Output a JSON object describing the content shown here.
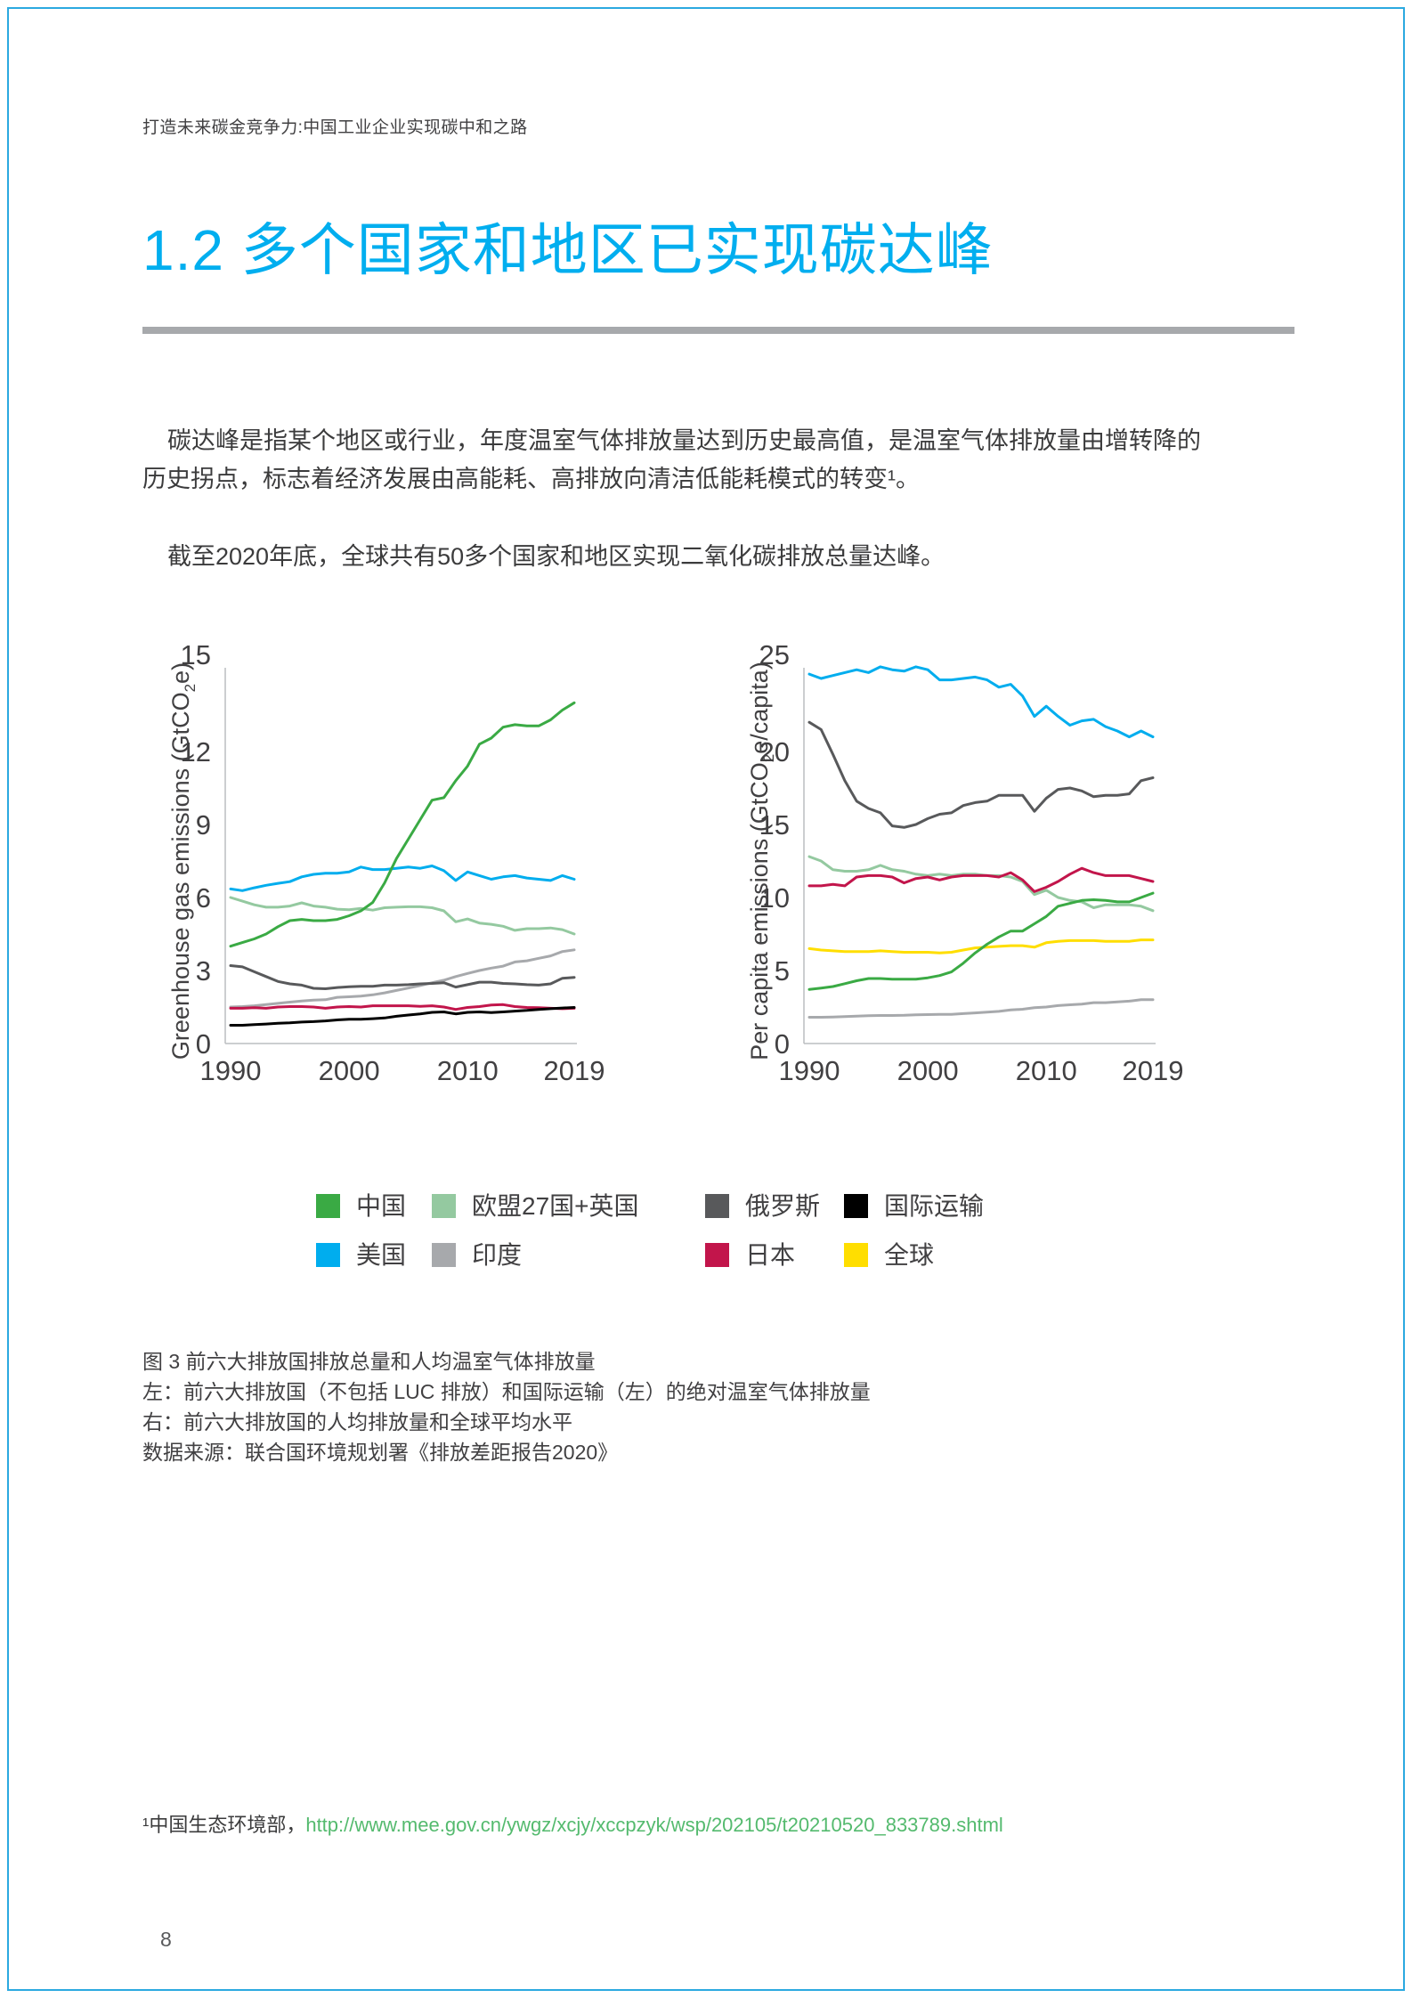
{
  "page": {
    "header": "打造未来碳金竞争力:中国工业企业实现碳中和之路",
    "section_title": "1.2 多个国家和地区已实现碳达峰",
    "paragraph1_lines": [
      "碳达峰是指某个地区或行业，年度温室气体排放量达到历史最高值，是温室气体排放量由增转降的",
      "历史拐点，标志着经济发展由高能耗、高排放向清洁低能耗模式的转变¹。"
    ],
    "paragraph2": "截至2020年底，全球共有50多个国家和地区实现二氧化碳排放总量达峰。",
    "caption_lines": [
      "图 3 前六大排放国排放总量和人均温室气体排放量",
      "左：前六大排放国（不包括 LUC 排放）和国际运输（左）的绝对温室气体排放量",
      "右：前六大排放国的人均排放量和全球平均水平",
      "数据来源：联合国环境规划署《排放差距报告2020》"
    ],
    "footnote": {
      "text": "¹中国生态环境部，",
      "link": "http://www.mee.gov.cn/ywgz/xcjy/xccpzyk/wsp/202105/t20210520_833789.shtml"
    },
    "page_number": "8"
  },
  "colors": {
    "accent_title": "#00AEEF",
    "page_border": "#2BA9E0",
    "divider": "#A7A9AC",
    "body_text": "#3B3B3C",
    "axis_text": "#414042",
    "axis_line": "#BCBEC0",
    "link_green": "#54BA6E",
    "series": {
      "china": "#3AAA44",
      "eu": "#94C9A0",
      "russia": "#58595B",
      "intl": "#000000",
      "us": "#00ADEE",
      "india": "#A7A9AC",
      "japan": "#C2154B",
      "global": "#FFDE00"
    }
  },
  "legend": {
    "items": [
      {
        "label": "中国",
        "key": "china"
      },
      {
        "label": "欧盟27国+英国",
        "key": "eu"
      },
      {
        "label": "俄罗斯",
        "key": "russia"
      },
      {
        "label": "国际运输",
        "key": "intl"
      },
      {
        "label": "美国",
        "key": "us"
      },
      {
        "label": "印度",
        "key": "india"
      },
      {
        "label": "日本",
        "key": "japan"
      },
      {
        "label": "全球",
        "key": "global"
      }
    ]
  },
  "chart_data": [
    {
      "type": "line",
      "title": "",
      "ylabel": "Greenhouse gas emissions (GtCO2e)",
      "ylabel_parts": [
        {
          "t": "Greenhouse gas emissions (GtCO"
        },
        {
          "t": "2",
          "sub": true
        },
        {
          "t": "e)"
        }
      ],
      "xlabel": "",
      "ylim": [
        0,
        15
      ],
      "yticks": [
        0,
        3,
        6,
        9,
        12,
        15
      ],
      "xticks": [
        1990,
        2000,
        2010,
        2019
      ],
      "grid": false,
      "legend_position": "below",
      "x": [
        1990,
        1991,
        1992,
        1993,
        1994,
        1995,
        1996,
        1997,
        1998,
        1999,
        2000,
        2001,
        2002,
        2003,
        2004,
        2005,
        2006,
        2007,
        2008,
        2009,
        2010,
        2011,
        2012,
        2013,
        2014,
        2015,
        2016,
        2017,
        2018,
        2019
      ],
      "series": [
        {
          "name": "印度",
          "color_key": "india",
          "values": [
            1.5,
            1.52,
            1.55,
            1.6,
            1.65,
            1.7,
            1.75,
            1.78,
            1.8,
            1.9,
            1.92,
            1.95,
            2.0,
            2.08,
            2.18,
            2.28,
            2.38,
            2.5,
            2.6,
            2.75,
            2.88,
            3.0,
            3.1,
            3.18,
            3.35,
            3.4,
            3.5,
            3.6,
            3.78,
            3.85
          ]
        },
        {
          "name": "俄罗斯",
          "color_key": "russia",
          "values": [
            3.2,
            3.15,
            2.95,
            2.75,
            2.55,
            2.45,
            2.4,
            2.27,
            2.25,
            2.3,
            2.33,
            2.35,
            2.35,
            2.4,
            2.4,
            2.42,
            2.45,
            2.47,
            2.5,
            2.32,
            2.42,
            2.52,
            2.52,
            2.47,
            2.45,
            2.42,
            2.4,
            2.45,
            2.68,
            2.72
          ]
        },
        {
          "name": "日本",
          "color_key": "japan",
          "values": [
            1.45,
            1.45,
            1.47,
            1.45,
            1.5,
            1.52,
            1.52,
            1.5,
            1.45,
            1.5,
            1.52,
            1.5,
            1.55,
            1.55,
            1.55,
            1.55,
            1.53,
            1.55,
            1.5,
            1.4,
            1.48,
            1.52,
            1.58,
            1.6,
            1.52,
            1.48,
            1.47,
            1.45,
            1.43,
            1.45
          ]
        },
        {
          "name": "国际运输",
          "color_key": "intl",
          "values": [
            0.75,
            0.75,
            0.78,
            0.8,
            0.83,
            0.85,
            0.88,
            0.9,
            0.93,
            0.97,
            1.0,
            1.0,
            1.02,
            1.05,
            1.12,
            1.17,
            1.22,
            1.28,
            1.3,
            1.22,
            1.28,
            1.3,
            1.27,
            1.3,
            1.33,
            1.36,
            1.4,
            1.43,
            1.46,
            1.48
          ]
        },
        {
          "name": "欧盟27国+英国",
          "color_key": "eu",
          "values": [
            6.0,
            5.85,
            5.7,
            5.6,
            5.6,
            5.65,
            5.78,
            5.65,
            5.6,
            5.52,
            5.5,
            5.55,
            5.48,
            5.58,
            5.6,
            5.62,
            5.62,
            5.58,
            5.45,
            5.0,
            5.12,
            4.95,
            4.9,
            4.82,
            4.65,
            4.72,
            4.72,
            4.75,
            4.68,
            4.5
          ]
        },
        {
          "name": "美国",
          "color_key": "us",
          "values": [
            6.35,
            6.28,
            6.4,
            6.5,
            6.58,
            6.65,
            6.85,
            6.95,
            7.0,
            7.0,
            7.05,
            7.25,
            7.15,
            7.15,
            7.2,
            7.25,
            7.2,
            7.3,
            7.1,
            6.7,
            7.05,
            6.9,
            6.75,
            6.85,
            6.9,
            6.8,
            6.75,
            6.7,
            6.9,
            6.75
          ]
        },
        {
          "name": "中国",
          "color_key": "china",
          "values": [
            4.0,
            4.15,
            4.3,
            4.5,
            4.8,
            5.05,
            5.1,
            5.05,
            5.05,
            5.1,
            5.25,
            5.45,
            5.8,
            6.6,
            7.6,
            8.4,
            9.2,
            10.0,
            10.1,
            10.8,
            11.4,
            12.3,
            12.55,
            13.0,
            13.1,
            13.05,
            13.05,
            13.3,
            13.7,
            14.0
          ]
        }
      ]
    },
    {
      "type": "line",
      "title": "",
      "ylabel": "Per capita emissions (GtCO2e/capita)",
      "ylabel_parts": [
        {
          "t": "Per capita emissions (GtCO"
        },
        {
          "t": "2",
          "sub": true
        },
        {
          "t": "e/capita)"
        }
      ],
      "xlabel": "",
      "ylim": [
        0,
        25
      ],
      "yticks": [
        0,
        5,
        10,
        15,
        20,
        25
      ],
      "xticks": [
        1990,
        2000,
        2010,
        2019
      ],
      "grid": false,
      "legend_position": "below",
      "x": [
        1990,
        1991,
        1992,
        1993,
        1994,
        1995,
        1996,
        1997,
        1998,
        1999,
        2000,
        2001,
        2002,
        2003,
        2004,
        2005,
        2006,
        2007,
        2008,
        2009,
        2010,
        2011,
        2012,
        2013,
        2014,
        2015,
        2016,
        2017,
        2018,
        2019
      ],
      "series": [
        {
          "name": "印度",
          "color_key": "india",
          "values": [
            1.8,
            1.8,
            1.82,
            1.85,
            1.87,
            1.9,
            1.92,
            1.92,
            1.93,
            1.97,
            1.98,
            2.0,
            2.0,
            2.05,
            2.1,
            2.15,
            2.2,
            2.3,
            2.35,
            2.45,
            2.5,
            2.6,
            2.65,
            2.7,
            2.8,
            2.8,
            2.85,
            2.9,
            3.0,
            3.0
          ]
        },
        {
          "name": "全球",
          "color_key": "global",
          "values": [
            6.5,
            6.4,
            6.35,
            6.3,
            6.3,
            6.3,
            6.35,
            6.3,
            6.25,
            6.25,
            6.25,
            6.2,
            6.25,
            6.4,
            6.55,
            6.6,
            6.65,
            6.7,
            6.7,
            6.6,
            6.9,
            7.0,
            7.05,
            7.05,
            7.05,
            7.0,
            7.0,
            7.0,
            7.1,
            7.1
          ]
        },
        {
          "name": "欧盟27国+英国",
          "color_key": "eu",
          "values": [
            12.8,
            12.5,
            11.9,
            11.8,
            11.8,
            11.9,
            12.2,
            11.9,
            11.8,
            11.6,
            11.5,
            11.6,
            11.5,
            11.6,
            11.6,
            11.5,
            11.5,
            11.4,
            11.1,
            10.2,
            10.5,
            10.0,
            9.8,
            9.7,
            9.3,
            9.5,
            9.5,
            9.5,
            9.4,
            9.1
          ]
        },
        {
          "name": "日本",
          "color_key": "japan",
          "values": [
            10.8,
            10.8,
            10.9,
            10.8,
            11.4,
            11.5,
            11.5,
            11.4,
            11.0,
            11.3,
            11.4,
            11.2,
            11.4,
            11.5,
            11.5,
            11.5,
            11.4,
            11.7,
            11.2,
            10.4,
            10.7,
            11.1,
            11.6,
            12.0,
            11.7,
            11.5,
            11.5,
            11.5,
            11.3,
            11.1
          ]
        },
        {
          "name": "俄罗斯",
          "color_key": "russia",
          "values": [
            22.0,
            21.5,
            19.8,
            18.0,
            16.6,
            16.1,
            15.8,
            14.9,
            14.8,
            15.0,
            15.4,
            15.7,
            15.8,
            16.3,
            16.5,
            16.6,
            17.0,
            17.0,
            17.0,
            15.9,
            16.8,
            17.4,
            17.5,
            17.3,
            16.9,
            17.0,
            17.0,
            17.1,
            18.0,
            18.2
          ]
        },
        {
          "name": "美国",
          "color_key": "us",
          "values": [
            25.3,
            25.0,
            25.2,
            25.4,
            25.6,
            25.4,
            25.8,
            25.6,
            25.5,
            25.8,
            25.6,
            24.9,
            24.9,
            25.0,
            25.1,
            24.9,
            24.4,
            24.6,
            23.8,
            22.4,
            23.1,
            22.4,
            21.8,
            22.1,
            22.2,
            21.7,
            21.4,
            21.0,
            21.4,
            21.0
          ]
        },
        {
          "name": "中国",
          "color_key": "china",
          "values": [
            3.7,
            3.8,
            3.9,
            4.1,
            4.3,
            4.45,
            4.45,
            4.4,
            4.4,
            4.4,
            4.5,
            4.65,
            4.9,
            5.5,
            6.2,
            6.8,
            7.3,
            7.7,
            7.7,
            8.2,
            8.7,
            9.4,
            9.6,
            9.8,
            9.85,
            9.8,
            9.7,
            9.7,
            10.0,
            10.3
          ]
        }
      ]
    }
  ]
}
